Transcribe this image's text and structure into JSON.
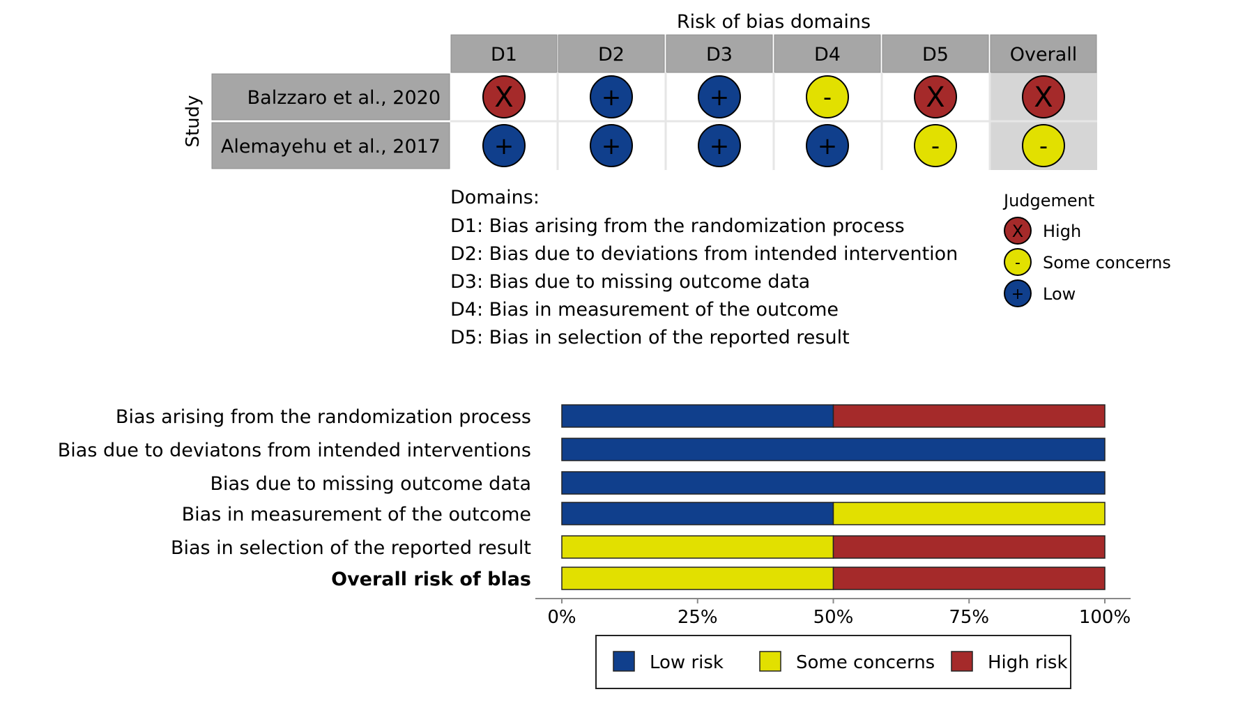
{
  "traffic_light": {
    "title": "Risk of bias domains",
    "study_axis_label": "Study",
    "domain_headers": [
      "D1",
      "D2",
      "D3",
      "D4",
      "D5",
      "Overall"
    ],
    "studies": [
      {
        "name": "Balzzaro et al., 2020",
        "judgements": [
          "high",
          "low",
          "low",
          "some",
          "high",
          "high"
        ]
      },
      {
        "name": "Alemayehu et al., 2017",
        "judgements": [
          "low",
          "low",
          "low",
          "low",
          "some",
          "some"
        ]
      }
    ],
    "domains_heading": "Domains:",
    "domain_descriptions": [
      "D1: Bias arising from the randomization process",
      "D2: Bias due to deviations from intended intervention",
      "D3: Bias due to missing outcome data",
      "D4: Bias in measurement of the outcome",
      "D5: Bias in selection of the reported result"
    ],
    "judgement_legend": {
      "title": "Judgement",
      "items": [
        {
          "key": "high",
          "label": "High",
          "symbol": "X"
        },
        {
          "key": "some",
          "label": "Some concerns",
          "symbol": "-"
        },
        {
          "key": "low",
          "label": "Low",
          "symbol": "+"
        }
      ]
    }
  },
  "colors": {
    "high": "#A52A2A",
    "some": "#E2E000",
    "low": "#103F8C",
    "header_bg": "#A6A6A6",
    "overall_col_bg": "#D6D6D6",
    "grid_line": "#E6E6E6"
  },
  "chart_data": {
    "type": "bar",
    "orientation": "horizontal",
    "stacked": true,
    "categories": [
      "Bias arising from the randomization process",
      "Bias due to deviatons from intended interventions",
      "Bias due to missing outcome data",
      "Bias in measurement of the outcome",
      "Bias in selection of the reported result",
      "Overall risk of blas"
    ],
    "bold_categories": [
      "Overall risk of blas"
    ],
    "series": [
      {
        "name": "Low risk",
        "key": "low",
        "values": [
          50,
          100,
          100,
          50,
          0,
          0
        ]
      },
      {
        "name": "Some concerns",
        "key": "some",
        "values": [
          0,
          0,
          0,
          50,
          50,
          50
        ]
      },
      {
        "name": "High risk",
        "key": "high",
        "values": [
          50,
          0,
          0,
          0,
          50,
          50
        ]
      }
    ],
    "xlim": [
      0,
      100
    ],
    "x_ticks": [
      0,
      25,
      50,
      75,
      100
    ],
    "x_tick_labels": [
      "0%",
      "25%",
      "50%",
      "75%",
      "100%"
    ],
    "grid": false,
    "legend_placement": "bottom"
  }
}
